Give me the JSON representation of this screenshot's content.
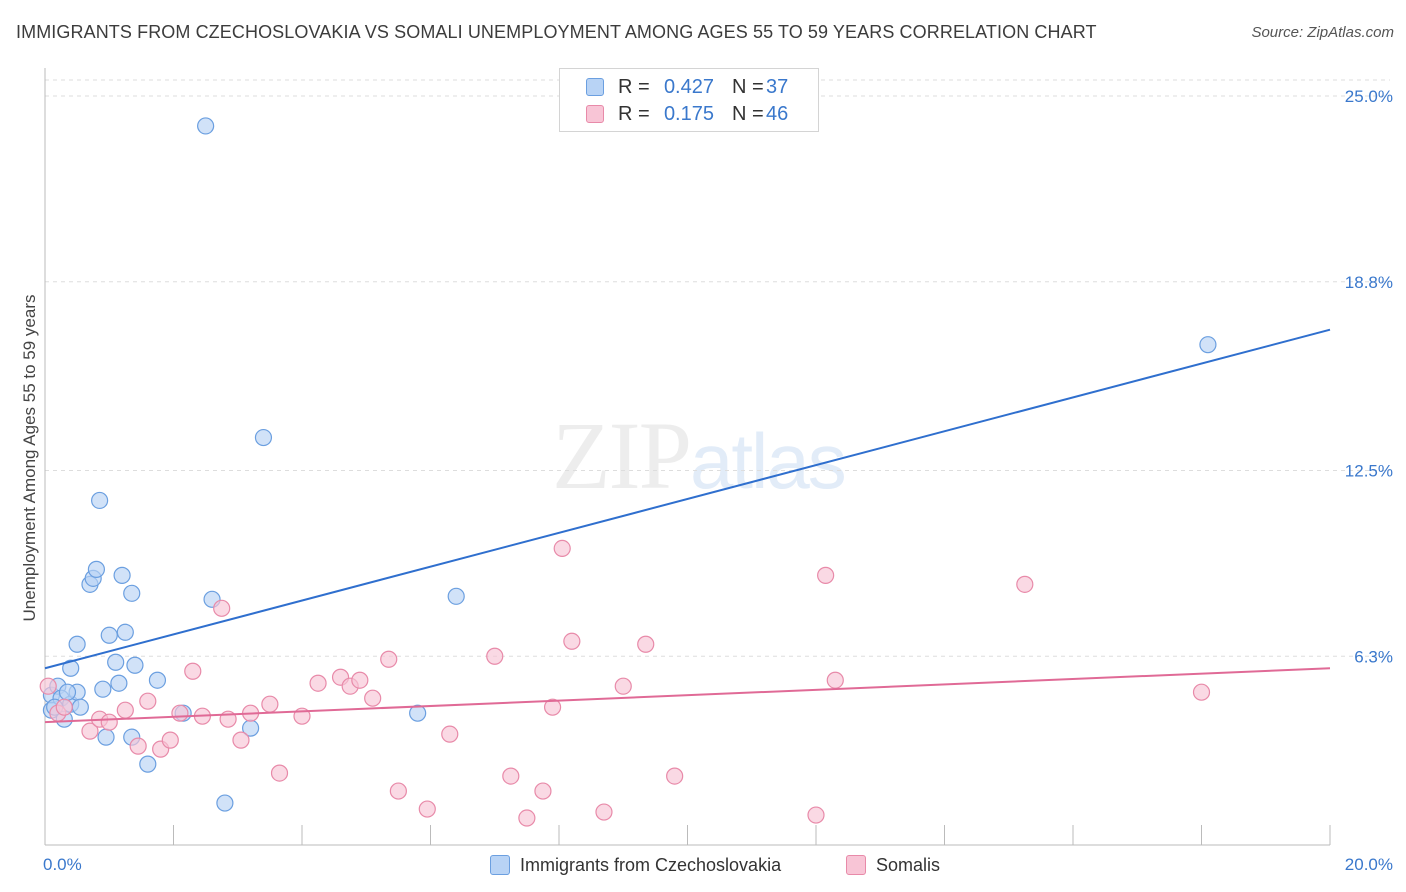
{
  "title": "IMMIGRANTS FROM CZECHOSLOVAKIA VS SOMALI UNEMPLOYMENT AMONG AGES 55 TO 59 YEARS CORRELATION CHART",
  "source": "Source: ZipAtlas.com",
  "watermark": {
    "zip": "ZIP",
    "atlas": "atlas"
  },
  "legend": {
    "rows": [
      {
        "r_label": "R =",
        "r_value": "0.427",
        "n_label": "N =",
        "n_value": "37"
      },
      {
        "r_label": "R =",
        "r_value": "0.175",
        "n_label": "N =",
        "n_value": "46"
      }
    ],
    "bottom": [
      {
        "label": "Immigrants from Czechoslovakia"
      },
      {
        "label": "Somalis"
      }
    ]
  },
  "colors": {
    "blue_fill": "#b8d3f5",
    "blue_stroke": "#6b9fe0",
    "blue_line": "#2f6fce",
    "pink_fill": "#f8c5d6",
    "pink_stroke": "#e88aa9",
    "pink_line": "#e06a96",
    "axis_text": "#3a78cc",
    "grid": "#dddddd"
  },
  "chart_data": {
    "type": "scatter",
    "title": "IMMIGRANTS FROM CZECHOSLOVAKIA VS SOMALI UNEMPLOYMENT AMONG AGES 55 TO 59 YEARS CORRELATION CHART",
    "xlabel": "",
    "ylabel": "Unemployment Among Ages 55 to 59 years",
    "xlim": [
      0,
      20
    ],
    "ylim": [
      0,
      25
    ],
    "x_tick_labels": [
      "0.0%",
      "20.0%"
    ],
    "y_ticks": [
      6.3,
      12.5,
      18.8,
      25.0
    ],
    "y_tick_labels": [
      "6.3%",
      "12.5%",
      "18.8%",
      "25.0%"
    ],
    "grid": true,
    "series": [
      {
        "name": "Immigrants from Czechoslovakia",
        "trend": {
          "x": [
            0,
            20
          ],
          "y": [
            5.9,
            17.2
          ]
        },
        "points": [
          [
            0.1,
            5.0
          ],
          [
            0.1,
            4.5
          ],
          [
            0.2,
            5.3
          ],
          [
            0.25,
            4.9
          ],
          [
            0.3,
            4.2
          ],
          [
            0.4,
            4.7
          ],
          [
            0.4,
            5.9
          ],
          [
            0.5,
            6.7
          ],
          [
            0.5,
            5.1
          ],
          [
            0.55,
            4.6
          ],
          [
            0.7,
            8.7
          ],
          [
            0.75,
            8.9
          ],
          [
            0.8,
            9.2
          ],
          [
            0.85,
            11.5
          ],
          [
            0.9,
            5.2
          ],
          [
            0.95,
            3.6
          ],
          [
            1.0,
            7.0
          ],
          [
            1.1,
            6.1
          ],
          [
            1.15,
            5.4
          ],
          [
            1.2,
            9.0
          ],
          [
            1.25,
            7.1
          ],
          [
            1.35,
            3.6
          ],
          [
            1.35,
            8.4
          ],
          [
            1.4,
            6.0
          ],
          [
            1.6,
            2.7
          ],
          [
            1.75,
            5.5
          ],
          [
            2.15,
            4.4
          ],
          [
            2.5,
            24.0
          ],
          [
            2.6,
            8.2
          ],
          [
            2.8,
            1.4
          ],
          [
            3.2,
            3.9
          ],
          [
            3.4,
            13.6
          ],
          [
            5.8,
            4.4
          ],
          [
            6.4,
            8.3
          ],
          [
            18.1,
            16.7
          ],
          [
            0.15,
            4.6
          ],
          [
            0.35,
            5.1
          ]
        ]
      },
      {
        "name": "Somalis",
        "trend": {
          "x": [
            0,
            20
          ],
          "y": [
            4.1,
            5.9
          ]
        },
        "points": [
          [
            0.05,
            5.3
          ],
          [
            0.2,
            4.4
          ],
          [
            0.3,
            4.6
          ],
          [
            0.7,
            3.8
          ],
          [
            0.85,
            4.2
          ],
          [
            1.0,
            4.1
          ],
          [
            1.25,
            4.5
          ],
          [
            1.45,
            3.3
          ],
          [
            1.6,
            4.8
          ],
          [
            1.8,
            3.2
          ],
          [
            1.95,
            3.5
          ],
          [
            2.1,
            4.4
          ],
          [
            2.3,
            5.8
          ],
          [
            2.45,
            4.3
          ],
          [
            2.75,
            7.9
          ],
          [
            2.85,
            4.2
          ],
          [
            3.05,
            3.5
          ],
          [
            3.2,
            4.4
          ],
          [
            3.5,
            4.7
          ],
          [
            3.65,
            2.4
          ],
          [
            4.0,
            4.3
          ],
          [
            4.25,
            5.4
          ],
          [
            4.6,
            5.6
          ],
          [
            4.75,
            5.3
          ],
          [
            4.9,
            5.5
          ],
          [
            5.1,
            4.9
          ],
          [
            5.35,
            6.2
          ],
          [
            5.5,
            1.8
          ],
          [
            5.95,
            1.2
          ],
          [
            6.3,
            3.7
          ],
          [
            7.0,
            6.3
          ],
          [
            7.25,
            2.3
          ],
          [
            7.5,
            0.9
          ],
          [
            7.75,
            1.8
          ],
          [
            7.9,
            4.6
          ],
          [
            8.05,
            9.9
          ],
          [
            8.2,
            6.8
          ],
          [
            8.7,
            1.1
          ],
          [
            9.0,
            5.3
          ],
          [
            9.35,
            6.7
          ],
          [
            9.8,
            2.3
          ],
          [
            12.0,
            1.0
          ],
          [
            12.15,
            9.0
          ],
          [
            12.3,
            5.5
          ],
          [
            15.25,
            8.7
          ],
          [
            18.0,
            5.1
          ]
        ]
      }
    ]
  }
}
